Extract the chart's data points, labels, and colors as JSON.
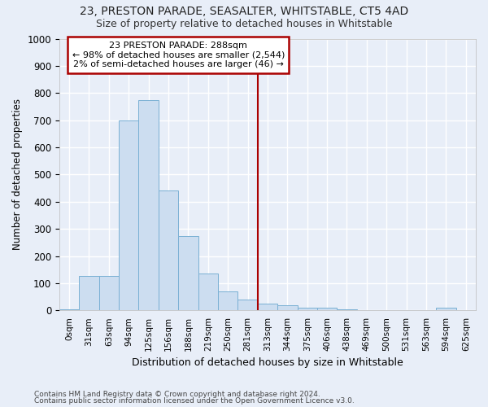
{
  "title1": "23, PRESTON PARADE, SEASALTER, WHITSTABLE, CT5 4AD",
  "title2": "Size of property relative to detached houses in Whitstable",
  "xlabel": "Distribution of detached houses by size in Whitstable",
  "ylabel": "Number of detached properties",
  "footnote1": "Contains HM Land Registry data © Crown copyright and database right 2024.",
  "footnote2": "Contains public sector information licensed under the Open Government Licence v3.0.",
  "bar_labels": [
    "0sqm",
    "31sqm",
    "63sqm",
    "94sqm",
    "125sqm",
    "156sqm",
    "188sqm",
    "219sqm",
    "250sqm",
    "281sqm",
    "313sqm",
    "344sqm",
    "375sqm",
    "406sqm",
    "438sqm",
    "469sqm",
    "500sqm",
    "531sqm",
    "563sqm",
    "594sqm",
    "625sqm"
  ],
  "bar_values": [
    5,
    128,
    128,
    700,
    775,
    440,
    275,
    135,
    70,
    40,
    25,
    20,
    10,
    10,
    5,
    0,
    0,
    0,
    0,
    10,
    0
  ],
  "bar_color": "#ccddf0",
  "bar_edge_color": "#7ab0d4",
  "background_color": "#e8eef8",
  "grid_color": "#ffffff",
  "vline_color": "#aa0000",
  "annotation_box_edgecolor": "#aa0000",
  "annotation_line1": "23 PRESTON PARADE: 288sqm",
  "annotation_line2": "← 98% of detached houses are smaller (2,544)",
  "annotation_line3": "2% of semi-detached houses are larger (46) →",
  "ylim_max": 1000,
  "ytick_step": 100,
  "vline_bin_index": 9.5
}
